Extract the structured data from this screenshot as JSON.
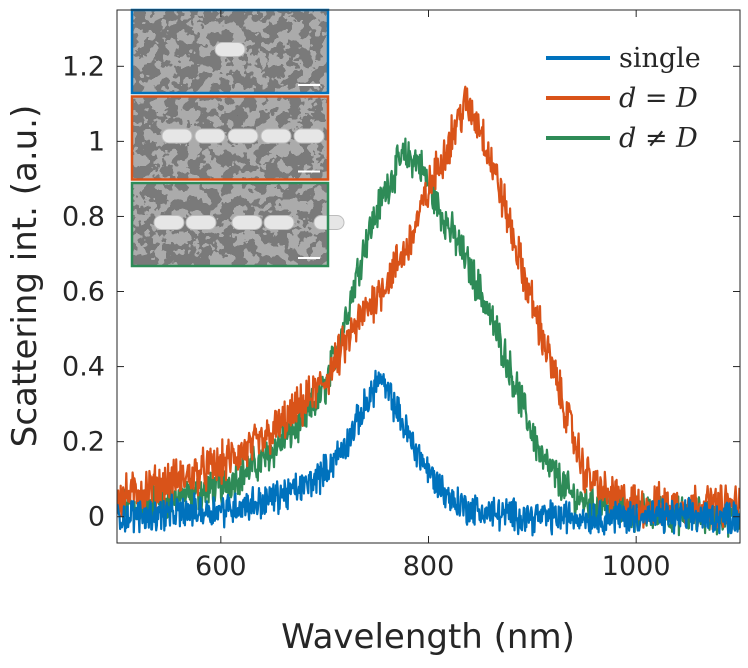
{
  "chart_data": {
    "type": "line",
    "title": "",
    "xlabel": "Wavelength (nm)",
    "ylabel": "Scattering int. (a.u.)",
    "xlim": [
      500,
      1100
    ],
    "ylim": [
      -0.07,
      1.35
    ],
    "xticks": [
      600,
      800,
      1000
    ],
    "xtick_labels": [
      "600",
      "800",
      "1000"
    ],
    "yticks": [
      0,
      0.2,
      0.4,
      0.6,
      0.8,
      1,
      1.2
    ],
    "ytick_labels": [
      "0",
      "0.2",
      "0.4",
      "0.6",
      "0.8",
      "1",
      "1.2"
    ],
    "grid": false,
    "legend_position": "top-right",
    "series": [
      {
        "name": "single",
        "color": "#0072BD",
        "noise": 0.035,
        "points": [
          [
            500,
            0.0
          ],
          [
            560,
            0.01
          ],
          [
            600,
            0.02
          ],
          [
            640,
            0.04
          ],
          [
            680,
            0.08
          ],
          [
            700,
            0.12
          ],
          [
            720,
            0.19
          ],
          [
            740,
            0.3
          ],
          [
            752,
            0.37
          ],
          [
            765,
            0.31
          ],
          [
            780,
            0.22
          ],
          [
            800,
            0.12
          ],
          [
            820,
            0.05
          ],
          [
            840,
            0.02
          ],
          [
            860,
            0.01
          ],
          [
            900,
            0.0
          ],
          [
            1000,
            0.0
          ],
          [
            1100,
            0.0
          ]
        ]
      },
      {
        "name": "d = D",
        "color": "#D95319",
        "noise": 0.045,
        "points": [
          [
            500,
            0.05
          ],
          [
            560,
            0.1
          ],
          [
            600,
            0.14
          ],
          [
            640,
            0.2
          ],
          [
            680,
            0.3
          ],
          [
            700,
            0.36
          ],
          [
            720,
            0.46
          ],
          [
            740,
            0.55
          ],
          [
            760,
            0.63
          ],
          [
            780,
            0.72
          ],
          [
            800,
            0.87
          ],
          [
            820,
            1.0
          ],
          [
            835,
            1.1
          ],
          [
            850,
            1.04
          ],
          [
            870,
            0.86
          ],
          [
            890,
            0.66
          ],
          [
            910,
            0.48
          ],
          [
            930,
            0.3
          ],
          [
            950,
            0.12
          ],
          [
            970,
            0.06
          ],
          [
            1000,
            0.03
          ],
          [
            1100,
            0.03
          ]
        ]
      },
      {
        "name": "d ≠ D",
        "color": "#2E8B57",
        "noise": 0.04,
        "points": [
          [
            500,
            0.02
          ],
          [
            560,
            0.05
          ],
          [
            600,
            0.08
          ],
          [
            640,
            0.15
          ],
          [
            680,
            0.26
          ],
          [
            700,
            0.34
          ],
          [
            720,
            0.53
          ],
          [
            740,
            0.74
          ],
          [
            760,
            0.88
          ],
          [
            775,
            0.96
          ],
          [
            790,
            0.95
          ],
          [
            810,
            0.82
          ],
          [
            830,
            0.72
          ],
          [
            850,
            0.6
          ],
          [
            870,
            0.46
          ],
          [
            890,
            0.3
          ],
          [
            910,
            0.15
          ],
          [
            940,
            0.05
          ],
          [
            1000,
            0.01
          ],
          [
            1100,
            0.0
          ]
        ]
      }
    ],
    "legend": [
      {
        "name": "single",
        "text": "single",
        "upright": true
      },
      {
        "name": "d = D",
        "text": "d = D",
        "upright": false
      },
      {
        "name": "d ≠ D",
        "text": "d ≠ D",
        "upright": false
      }
    ],
    "insets": [
      {
        "name": "single-particle-micrograph",
        "border_color": "#0072BD",
        "particles": 1
      },
      {
        "name": "equal-spacing-chain-micrograph",
        "border_color": "#D95319",
        "particles": 5
      },
      {
        "name": "unequal-spacing-chain-micrograph",
        "border_color": "#2E8B57",
        "particles": 5
      }
    ]
  }
}
